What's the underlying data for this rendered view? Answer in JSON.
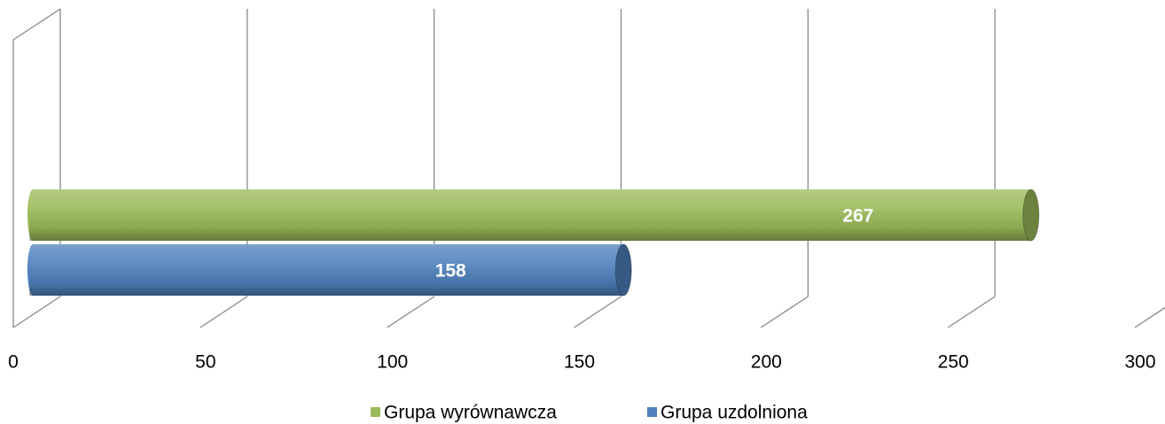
{
  "chart_data": {
    "type": "bar3d",
    "orientation": "horizontal",
    "categories": [
      null
    ],
    "series": [
      {
        "name": "Grupa wyrównawcza",
        "color": "#9bbb59",
        "values": [
          267
        ]
      },
      {
        "name": "Grupa uzdolniona",
        "color": "#4f81bd",
        "values": [
          158
        ]
      }
    ],
    "xlim": [
      0,
      300
    ],
    "xticks": [
      0,
      50,
      100,
      150,
      200,
      250,
      300
    ],
    "grid": true,
    "legend": "bottom"
  }
}
